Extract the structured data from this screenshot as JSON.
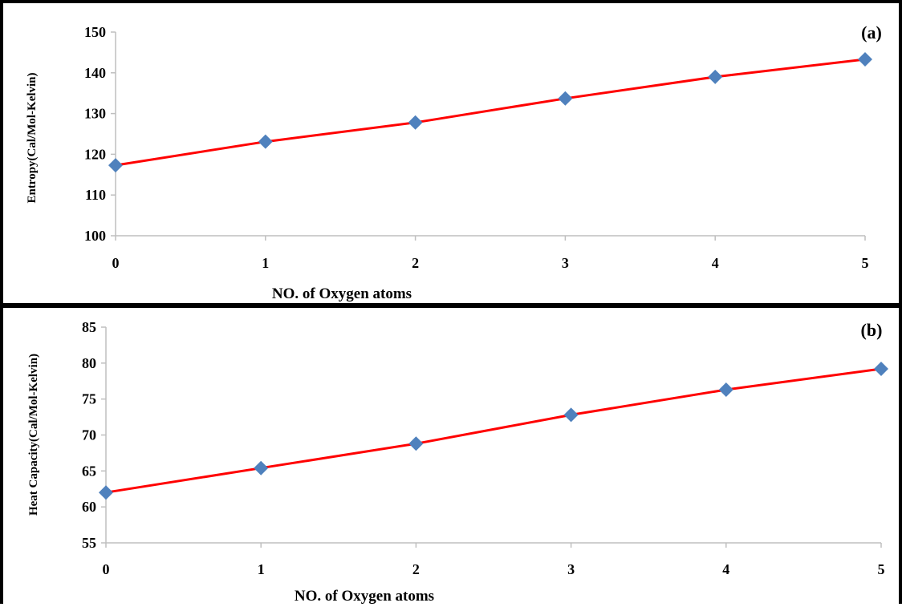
{
  "colors": {
    "line": "#ff0000",
    "marker": "#4f81bd",
    "axis": "#bfbfbf",
    "border": "#000000"
  },
  "chart_data": [
    {
      "type": "line",
      "panel_label": "(a)",
      "x": [
        0,
        1,
        2,
        3,
        4,
        5
      ],
      "series": [
        {
          "values": [
            117.3,
            123.1,
            127.8,
            133.7,
            139.0,
            143.3
          ],
          "marker": "diamond"
        }
      ],
      "xlabel": "NO. of Oxygen atoms",
      "ylabel": "Entropy(Cal/Mol-Kelvin)",
      "xlim": [
        0,
        5
      ],
      "ylim": [
        100,
        150
      ],
      "yticks": [
        100,
        110,
        120,
        130,
        140,
        150
      ],
      "xticks": [
        0,
        1,
        2,
        3,
        4,
        5
      ],
      "grid": false
    },
    {
      "type": "line",
      "panel_label": "(b)",
      "x": [
        0,
        1,
        2,
        3,
        4,
        5
      ],
      "series": [
        {
          "values": [
            62.0,
            65.4,
            68.8,
            72.8,
            76.3,
            79.2
          ],
          "marker": "diamond"
        }
      ],
      "xlabel": "NO. of Oxygen atoms",
      "ylabel": "Heat Capacity(Cal/Mol-Kelvin)",
      "xlim": [
        0,
        5
      ],
      "ylim": [
        55,
        85
      ],
      "yticks": [
        55,
        60,
        65,
        70,
        75,
        80,
        85
      ],
      "xticks": [
        0,
        1,
        2,
        3,
        4,
        5
      ],
      "grid": false
    }
  ]
}
